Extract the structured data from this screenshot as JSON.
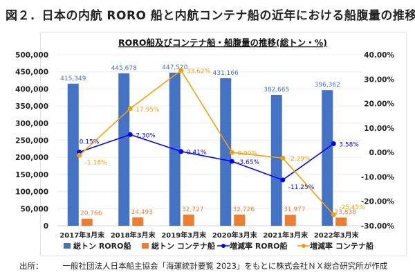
{
  "figure_title": "図２．日本の内航 RORO 船と内航コンテナ船の近年における船腹量の推移",
  "source_label": "出所：",
  "source_text": "一般社団法人日本船主協会「海運統計要覧 2023」をもとに株式会社ＮＸ総合研究所が作成",
  "chart_data": {
    "type": "bar",
    "title": "RORO船及びコンテナ船・船腹量の推移(総トン・%)",
    "categories": [
      "2017年3月末",
      "2018年3月末",
      "2019年3月末",
      "2020年3月末",
      "2021年3月末",
      "2022年3月末"
    ],
    "ylim": [
      0,
      500000
    ],
    "y_ticks": [
      "0",
      "50,000",
      "100,000",
      "150,000",
      "200,000",
      "250,000",
      "300,000",
      "350,000",
      "400,000",
      "450,000",
      "500,000"
    ],
    "y2lim": [
      -30,
      40
    ],
    "y2_ticks": [
      "-30.00%",
      "-20.00%",
      "-10.00%",
      "0.00%",
      "10.00%",
      "20.00%",
      "30.00%",
      "40.00%"
    ],
    "grid": true,
    "legend_placement": "bottom",
    "series": [
      {
        "name": "総トン RORO船",
        "type": "bar",
        "axis": "left",
        "color": "#4472c4",
        "values": [
          415349,
          445678,
          447520,
          431166,
          382665,
          396362
        ],
        "labels": [
          "415,349",
          "445,678",
          "447,520",
          "431,166",
          "382,665",
          "396,362"
        ]
      },
      {
        "name": "総トン コンテナ船",
        "type": "bar",
        "axis": "left",
        "color": "#ed7d31",
        "values": [
          20766,
          24493,
          32727,
          32726,
          31977,
          23838
        ],
        "labels": [
          "20,766",
          "24,493",
          "32,727",
          "32,726",
          "31,977",
          "23,838"
        ]
      },
      {
        "name": "増減率 RORO船",
        "type": "line",
        "axis": "right",
        "color": "#0000ff",
        "values": [
          0.15,
          7.3,
          0.41,
          -3.65,
          -11.25,
          3.58
        ],
        "labels": [
          "0.15%",
          "7.30%",
          "0.41%",
          "-3.65%",
          "-11.25%",
          "3.58%"
        ]
      },
      {
        "name": "増減率 コンテナ船",
        "type": "line",
        "axis": "right",
        "color": "#f5a000",
        "values": [
          -1.18,
          17.95,
          33.62,
          0.0,
          -2.29,
          -25.45
        ],
        "labels": [
          "-1.18%",
          "17.95%",
          "33.62%",
          "0.00%",
          "-2.29%",
          "-25.45%"
        ]
      }
    ]
  }
}
